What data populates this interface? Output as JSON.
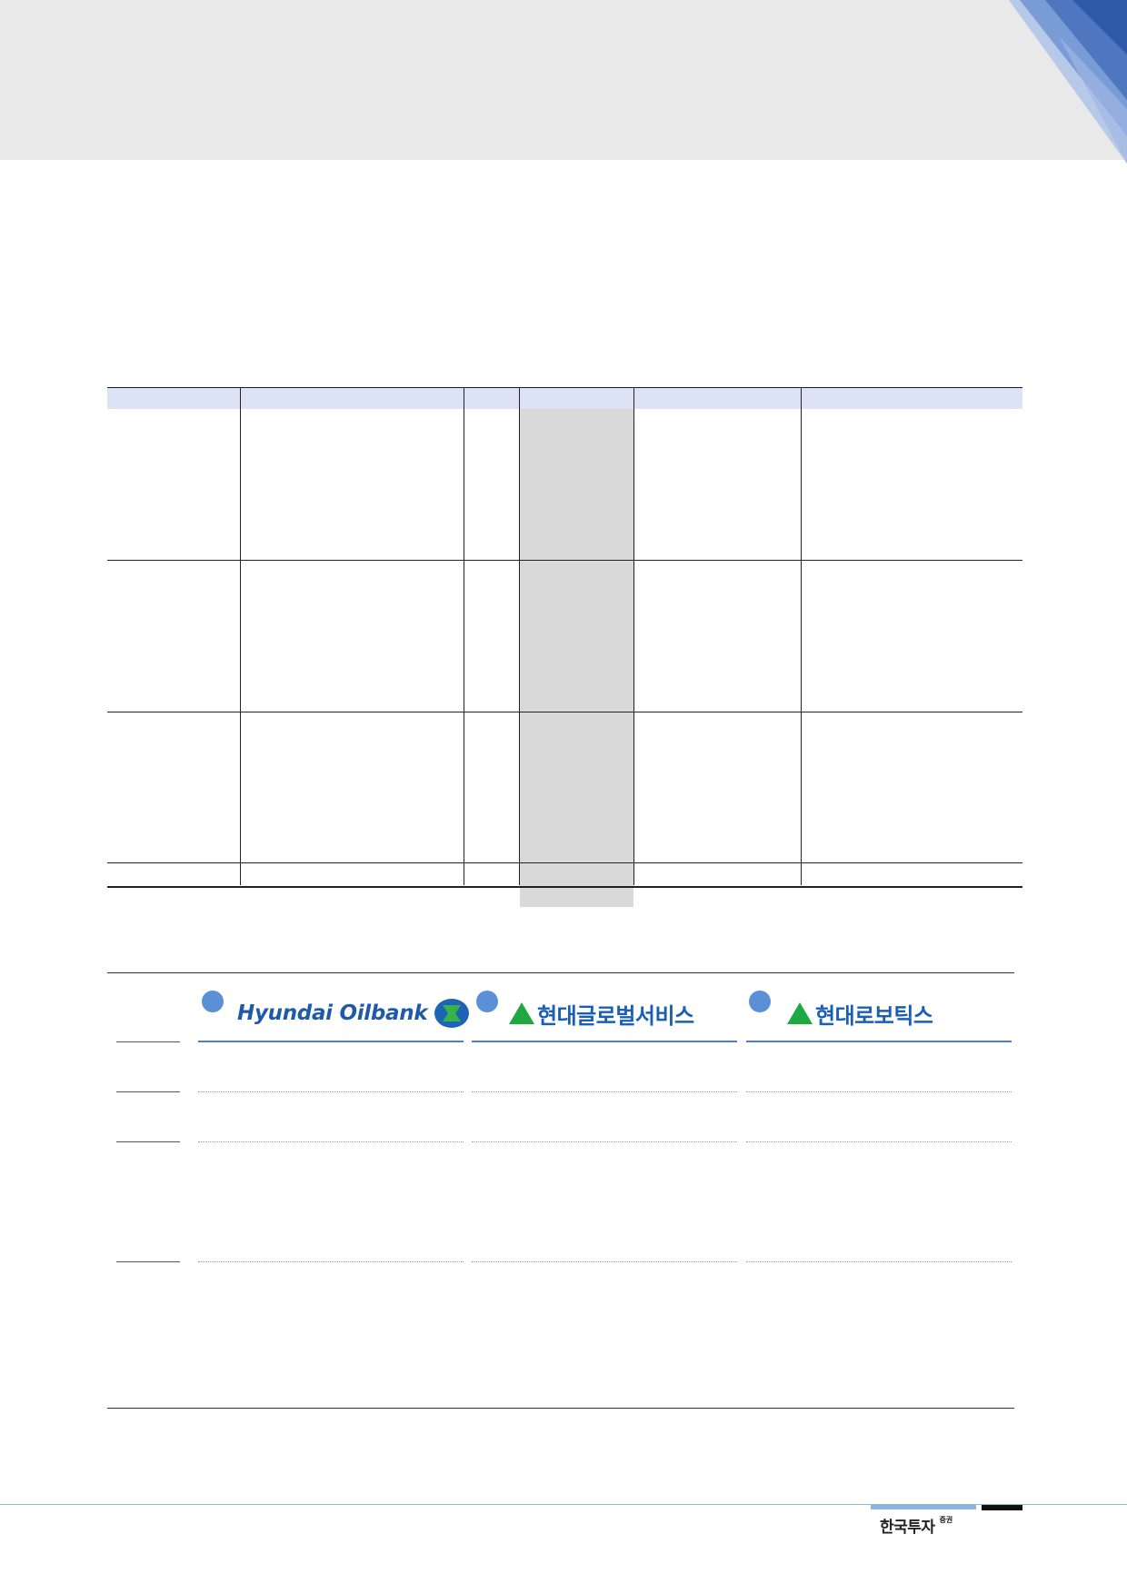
{
  "colors": {
    "header_band": "#e9e9e9",
    "table_header": "#dce3f4",
    "table_shade": "#d9d9d9",
    "accent_blue": "#4a7fd1",
    "marker_dot": "#5b8fd6",
    "logo_green": "#1da93f"
  },
  "affiliates": [
    {
      "logo_text": "Hyundai Oilbank",
      "icon": "oilbank-emblem-icon"
    },
    {
      "logo_text": "현대글로벌서비스",
      "icon": "hyundai-triangle-icon"
    },
    {
      "logo_text": "현대로보틱스",
      "icon": "hyundai-triangle-icon"
    }
  ],
  "footer": {
    "brand": "한국투자",
    "brand_sup": "증권"
  }
}
